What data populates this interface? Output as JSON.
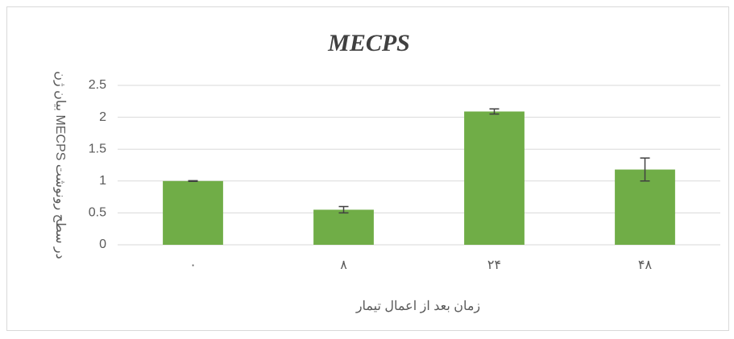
{
  "chart_data": {
    "type": "bar",
    "title": "MECPS",
    "x_label": "زمان بعد از اعمال تیمار",
    "y_label": "بیان ژن MECPS در سطح رونوشت",
    "categories": [
      "۰",
      "۸",
      "۲۴",
      "۴۸"
    ],
    "values": [
      1.0,
      0.55,
      2.09,
      1.18
    ],
    "errors": [
      0.005,
      0.05,
      0.04,
      0.18
    ],
    "color": "#70ad47",
    "ylim": [
      0,
      2.5
    ],
    "yticks": [
      0,
      0.5,
      1,
      1.5,
      2,
      2.5
    ],
    "grid": true
  }
}
